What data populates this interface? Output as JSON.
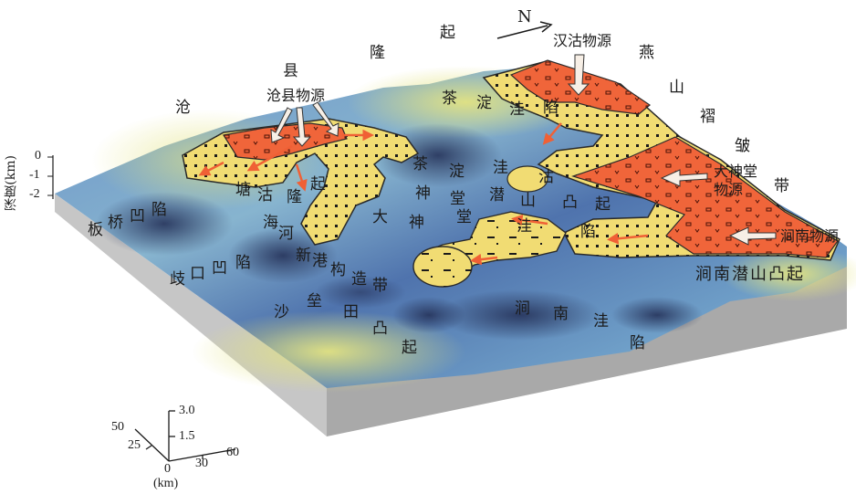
{
  "north": "N",
  "depth_axis": {
    "title": "深度(km)",
    "ticks": [
      "0",
      "-1",
      "-2"
    ]
  },
  "sources": {
    "hangu": "汉沽物源",
    "cangxian": "沧县物源",
    "dashentang": "大神堂物源",
    "jiannan": "涧南物源"
  },
  "regions": {
    "cang_ridge": [
      "沧",
      "县",
      "隆",
      "起"
    ],
    "yanshan_belt": [
      "燕",
      "山",
      "褶",
      "皱",
      "带"
    ],
    "banqiao_sag": [
      "板",
      "桥",
      "凹",
      "陷"
    ],
    "qikou_sag": [
      "歧",
      "口",
      "凹",
      "陷"
    ],
    "chadian_sag": [
      "茶",
      "淀",
      "洼",
      "陷"
    ],
    "tanggu": [
      "塘",
      "沽"
    ],
    "bohai_ridge": [
      "海",
      "河",
      "新",
      "港",
      "隆",
      "起"
    ],
    "dashentang_belt": [
      "大",
      "神",
      "堂",
      "构",
      "造",
      "带"
    ],
    "sha_lei": [
      "沙",
      "垒",
      "田",
      "凸",
      "起"
    ],
    "jiannan_sag": [
      "涧",
      "南",
      "洼",
      "陷"
    ],
    "jiannan_uplift": "涧南潜山凸起",
    "shishan": [
      "沽",
      "潜",
      "山",
      "凸",
      "起"
    ],
    "wanzhuang": "带"
  },
  "scale_bar": {
    "z_ticks": [
      "3.0",
      "1.5",
      "0"
    ],
    "y_ticks": [
      "50",
      "25"
    ],
    "x_ticks": [
      "30",
      "60"
    ],
    "unit": "(km)"
  },
  "colors": {
    "deep_basin": "#3d5a9e",
    "mid_basin": "#7fa8c8",
    "high_ground": "#d9e07a",
    "fan_fill": "#f1dc73",
    "fan_proximal": "#f0653a",
    "block_side": "#a9a9a9"
  }
}
